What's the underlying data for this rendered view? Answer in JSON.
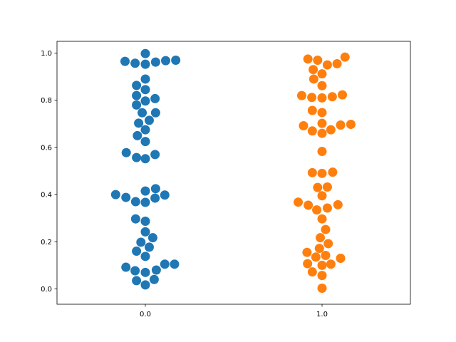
{
  "chart_data": {
    "type": "scatter",
    "subtype": "swarm",
    "title": "",
    "xlabel": "",
    "ylabel": "",
    "categories": [
      "0.0",
      "1.0"
    ],
    "xlim": [
      -0.5,
      1.5
    ],
    "ylim": [
      -0.065,
      1.05
    ],
    "xticks": [
      0.0,
      1.0
    ],
    "yticks": [
      0.0,
      0.2,
      0.4,
      0.6,
      0.8,
      1.0
    ],
    "ytick_labels": [
      "0.0",
      "0.2",
      "0.4",
      "0.6",
      "0.8",
      "1.0"
    ],
    "grid": false,
    "legend": "none",
    "series": [
      {
        "color": "#1f77b4",
        "points": [
          {
            "x": 0.0,
            "y": 0.998
          },
          {
            "x": -0.115,
            "y": 0.965
          },
          {
            "x": -0.058,
            "y": 0.957
          },
          {
            "x": 0.0,
            "y": 0.953
          },
          {
            "x": 0.058,
            "y": 0.962
          },
          {
            "x": 0.115,
            "y": 0.968
          },
          {
            "x": 0.172,
            "y": 0.97
          },
          {
            "x": 0.0,
            "y": 0.89
          },
          {
            "x": -0.05,
            "y": 0.863
          },
          {
            "x": 0.0,
            "y": 0.845
          },
          {
            "x": -0.05,
            "y": 0.82
          },
          {
            "x": 0.0,
            "y": 0.797
          },
          {
            "x": 0.055,
            "y": 0.807
          },
          {
            "x": -0.05,
            "y": 0.78
          },
          {
            "x": -0.018,
            "y": 0.747
          },
          {
            "x": 0.058,
            "y": 0.747
          },
          {
            "x": 0.022,
            "y": 0.715
          },
          {
            "x": -0.038,
            "y": 0.703
          },
          {
            "x": 0.0,
            "y": 0.675
          },
          {
            "x": -0.045,
            "y": 0.65
          },
          {
            "x": 0.0,
            "y": 0.625
          },
          {
            "x": -0.108,
            "y": 0.578
          },
          {
            "x": -0.05,
            "y": 0.557
          },
          {
            "x": 0.0,
            "y": 0.552
          },
          {
            "x": 0.055,
            "y": 0.57
          },
          {
            "x": 0.058,
            "y": 0.425
          },
          {
            "x": 0.0,
            "y": 0.415
          },
          {
            "x": -0.168,
            "y": 0.4
          },
          {
            "x": 0.11,
            "y": 0.398
          },
          {
            "x": -0.11,
            "y": 0.388
          },
          {
            "x": 0.055,
            "y": 0.385
          },
          {
            "x": -0.055,
            "y": 0.37
          },
          {
            "x": 0.0,
            "y": 0.367
          },
          {
            "x": -0.055,
            "y": 0.297
          },
          {
            "x": 0.0,
            "y": 0.287
          },
          {
            "x": 0.0,
            "y": 0.242
          },
          {
            "x": 0.042,
            "y": 0.217
          },
          {
            "x": -0.025,
            "y": 0.198
          },
          {
            "x": 0.022,
            "y": 0.177
          },
          {
            "x": -0.05,
            "y": 0.16
          },
          {
            "x": 0.0,
            "y": 0.138
          },
          {
            "x": 0.11,
            "y": 0.105
          },
          {
            "x": 0.165,
            "y": 0.105
          },
          {
            "x": -0.11,
            "y": 0.092
          },
          {
            "x": 0.062,
            "y": 0.08
          },
          {
            "x": -0.058,
            "y": 0.077
          },
          {
            "x": 0.0,
            "y": 0.07
          },
          {
            "x": 0.05,
            "y": 0.04
          },
          {
            "x": -0.05,
            "y": 0.035
          },
          {
            "x": 0.0,
            "y": 0.017
          }
        ]
      },
      {
        "color": "#ff7f0e",
        "points": [
          {
            "x": 1.13,
            "y": 0.983
          },
          {
            "x": 0.92,
            "y": 0.975
          },
          {
            "x": 0.975,
            "y": 0.97
          },
          {
            "x": 1.085,
            "y": 0.955
          },
          {
            "x": 1.03,
            "y": 0.95
          },
          {
            "x": 0.95,
            "y": 0.93
          },
          {
            "x": 1.0,
            "y": 0.912
          },
          {
            "x": 0.953,
            "y": 0.89
          },
          {
            "x": 1.0,
            "y": 0.862
          },
          {
            "x": 1.115,
            "y": 0.823
          },
          {
            "x": 0.885,
            "y": 0.82
          },
          {
            "x": 1.058,
            "y": 0.815
          },
          {
            "x": 0.942,
            "y": 0.812
          },
          {
            "x": 1.0,
            "y": 0.81
          },
          {
            "x": 0.945,
            "y": 0.757
          },
          {
            "x": 1.0,
            "y": 0.748
          },
          {
            "x": 1.0,
            "y": 0.702
          },
          {
            "x": 1.163,
            "y": 0.698
          },
          {
            "x": 1.105,
            "y": 0.695
          },
          {
            "x": 0.895,
            "y": 0.692
          },
          {
            "x": 1.05,
            "y": 0.675
          },
          {
            "x": 0.945,
            "y": 0.67
          },
          {
            "x": 1.0,
            "y": 0.66
          },
          {
            "x": 1.0,
            "y": 0.583
          },
          {
            "x": 1.06,
            "y": 0.495
          },
          {
            "x": 0.945,
            "y": 0.493
          },
          {
            "x": 1.0,
            "y": 0.49
          },
          {
            "x": 1.03,
            "y": 0.432
          },
          {
            "x": 0.975,
            "y": 0.43
          },
          {
            "x": 1.0,
            "y": 0.395
          },
          {
            "x": 0.865,
            "y": 0.368
          },
          {
            "x": 1.09,
            "y": 0.357
          },
          {
            "x": 0.922,
            "y": 0.355
          },
          {
            "x": 1.03,
            "y": 0.343
          },
          {
            "x": 0.97,
            "y": 0.335
          },
          {
            "x": 1.0,
            "y": 0.297
          },
          {
            "x": 1.02,
            "y": 0.252
          },
          {
            "x": 0.99,
            "y": 0.217
          },
          {
            "x": 1.035,
            "y": 0.192
          },
          {
            "x": 0.985,
            "y": 0.172
          },
          {
            "x": 0.915,
            "y": 0.155
          },
          {
            "x": 1.02,
            "y": 0.142
          },
          {
            "x": 0.965,
            "y": 0.135
          },
          {
            "x": 1.105,
            "y": 0.13
          },
          {
            "x": 0.918,
            "y": 0.107
          },
          {
            "x": 1.05,
            "y": 0.105
          },
          {
            "x": 1.0,
            "y": 0.1
          },
          {
            "x": 0.945,
            "y": 0.072
          },
          {
            "x": 1.0,
            "y": 0.057
          },
          {
            "x": 1.0,
            "y": 0.003
          }
        ]
      }
    ]
  }
}
